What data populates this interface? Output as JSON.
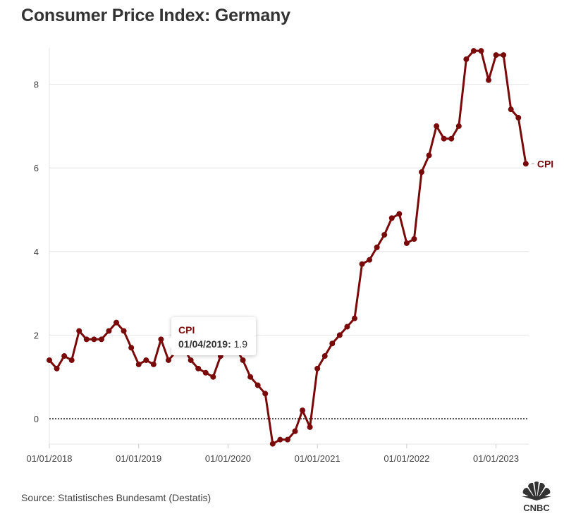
{
  "title": "Consumer Price Index: Germany",
  "source": "Source: Statistisches Bundesamt (Destatis)",
  "logo": "CNBC",
  "tooltip": {
    "series": "CPI",
    "date": "01/04/2019:",
    "value": "1.9"
  },
  "chart_data": {
    "type": "line",
    "title": "Consumer Price Index: Germany",
    "xlabel": "",
    "ylabel": "",
    "ylim": [
      -0.6,
      8.9
    ],
    "yticks": [
      "0",
      "2",
      "4",
      "6",
      "8"
    ],
    "xticks": [
      "01/01/2018",
      "01/01/2019",
      "01/01/2020",
      "01/01/2021",
      "01/01/2022",
      "01/01/2023"
    ],
    "grid": true,
    "reference_line": 0,
    "start": "01/01/2018",
    "frequency": "monthly",
    "series": [
      {
        "name": "CPI",
        "color": "#7a0a0a",
        "values": [
          1.4,
          1.2,
          1.5,
          1.4,
          2.1,
          1.9,
          1.9,
          1.9,
          2.1,
          2.3,
          2.1,
          1.7,
          1.3,
          1.4,
          1.3,
          1.9,
          1.4,
          1.6,
          1.7,
          1.4,
          1.2,
          1.1,
          1.0,
          1.5,
          1.7,
          1.7,
          1.4,
          1.0,
          0.8,
          0.6,
          -0.6,
          -0.5,
          -0.5,
          -0.3,
          0.2,
          -0.2,
          1.2,
          1.5,
          1.8,
          2.0,
          2.2,
          2.4,
          3.7,
          3.8,
          4.1,
          4.4,
          4.8,
          4.9,
          4.2,
          4.3,
          5.9,
          6.3,
          7.0,
          6.7,
          6.7,
          7.0,
          8.6,
          8.8,
          8.8,
          8.1,
          8.7,
          8.7,
          7.4,
          7.2,
          6.1
        ]
      }
    ]
  }
}
